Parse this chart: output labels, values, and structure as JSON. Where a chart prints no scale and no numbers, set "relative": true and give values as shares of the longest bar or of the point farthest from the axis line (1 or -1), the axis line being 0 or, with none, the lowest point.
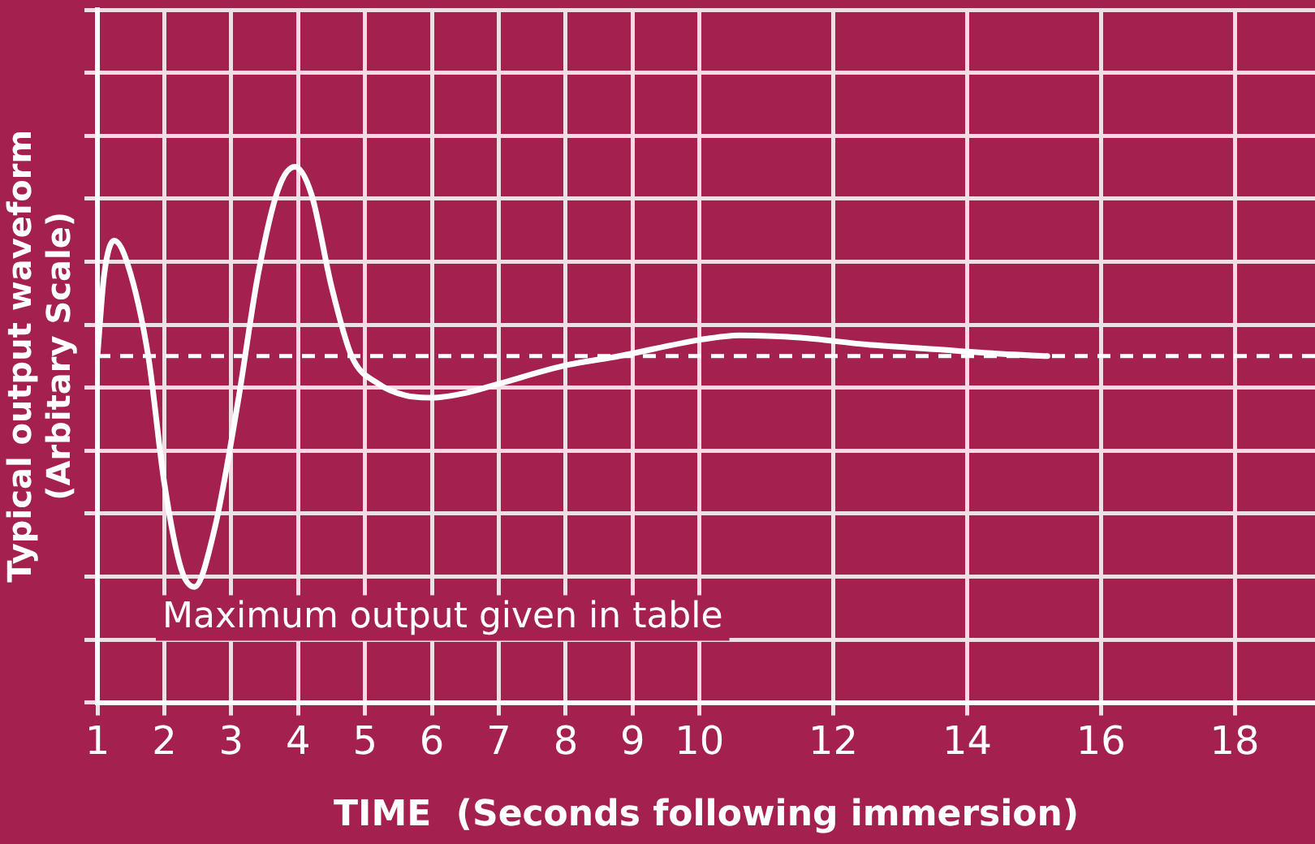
{
  "chart_data": {
    "type": "line",
    "xlabel": "TIME  (Seconds following immersion)",
    "ylabel": "Typical output waveform\n(Arbitary Scale)",
    "relative": true,
    "xlim": [
      1,
      19.2
    ],
    "xticks": [
      1,
      2,
      3,
      4,
      5,
      6,
      7,
      8,
      9,
      10,
      12,
      14,
      16,
      18
    ],
    "tick_labels": "x",
    "grid": true,
    "legend": false,
    "marker": "none",
    "line_style": "solid",
    "series": [
      {
        "color": "#ffffff",
        "x": [
          1.0,
          1.1,
          1.25,
          1.45,
          1.76,
          2.0,
          2.25,
          2.45,
          2.75,
          3.1,
          3.4,
          3.7,
          3.95,
          4.2,
          4.5,
          4.8,
          5.2,
          5.6,
          6.0,
          6.5,
          7.0,
          8.0,
          8.8,
          10.0,
          10.6,
          11.5,
          12.5,
          13.5,
          14.5,
          15.2
        ],
        "values": [
          0,
          0.35,
          0.5,
          0.4,
          0,
          -0.55,
          -0.92,
          -1,
          -0.75,
          -0.2,
          0.35,
          0.72,
          0.82,
          0.7,
          0.3,
          0,
          -0.12,
          -0.17,
          -0.18,
          -0.16,
          -0.12,
          -0.04,
          0,
          0.07,
          0.09,
          0.08,
          0.05,
          0.03,
          0.01,
          0
        ]
      }
    ],
    "ref_lines": [
      {
        "axis": "y",
        "value": 0,
        "color": "#ffffff",
        "line_style": "dashed"
      }
    ],
    "annotations": [
      "Maximum output given in table"
    ]
  }
}
